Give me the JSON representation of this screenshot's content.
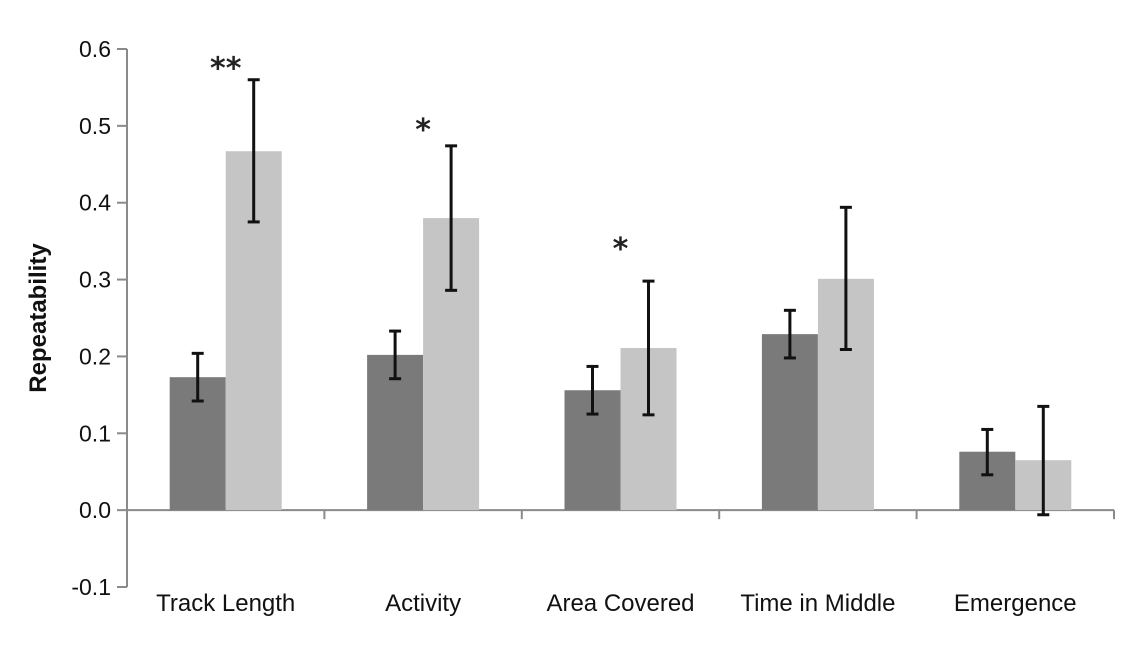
{
  "chart_data": {
    "type": "bar",
    "title": "",
    "xlabel": "",
    "ylabel": "Repeatability",
    "ylim": [
      -0.1,
      0.6
    ],
    "yticks": [
      "-0.1",
      "0.0",
      "0.1",
      "0.2",
      "0.3",
      "0.4",
      "0.5",
      "0.6"
    ],
    "grid": false,
    "categories": [
      "Track Length",
      "Activity",
      "Area Covered",
      "Time in Middle",
      "Emergence"
    ],
    "series": [
      {
        "color": "#7a7a7a",
        "values": [
          0.173,
          0.202,
          0.156,
          0.229,
          0.076
        ],
        "err_low": [
          0.142,
          0.171,
          0.125,
          0.198,
          0.046
        ],
        "err_high": [
          0.204,
          0.233,
          0.187,
          0.26,
          0.105
        ]
      },
      {
        "color": "#c4c5c4",
        "values": [
          0.467,
          0.38,
          0.211,
          0.301,
          0.065
        ],
        "err_low": [
          0.375,
          0.286,
          0.124,
          0.209,
          -0.006
        ],
        "err_high": [
          0.56,
          0.474,
          0.298,
          0.394,
          0.135
        ]
      }
    ],
    "annotations": [
      {
        "category_index": 0,
        "text": "**",
        "y": 0.585
      },
      {
        "category_index": 1,
        "text": "*",
        "y": 0.505
      },
      {
        "category_index": 2,
        "text": "*",
        "y": 0.35
      }
    ]
  }
}
